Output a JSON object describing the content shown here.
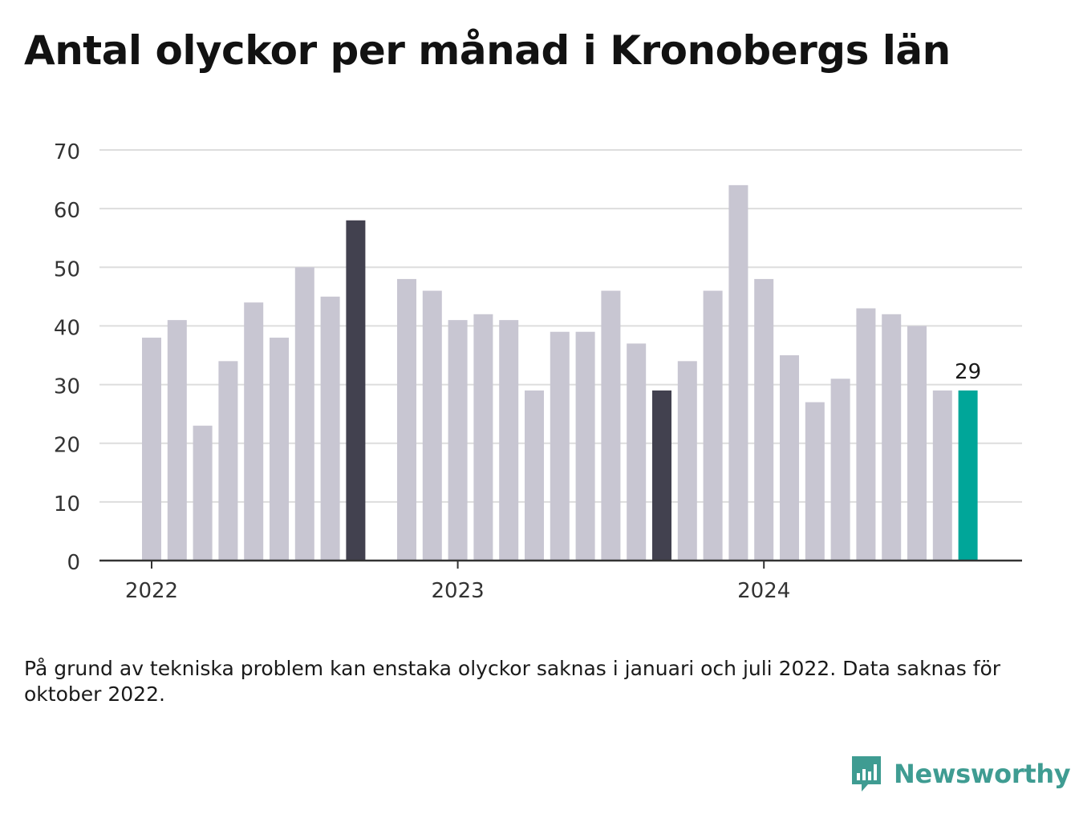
{
  "title": "Antal olyckor per månad i Kronobergs län",
  "note": "På grund av tekniska problem kan enstaka olyckor saknas i januari och juli 2022. Data saknas för oktober 2022.",
  "brand": {
    "name": "Newsworthy",
    "color": "#3f9c92",
    "icon": "newsworthy-chart-bubble-icon"
  },
  "colors": {
    "bar_default": "#c8c6d2",
    "bar_september": "#42414f",
    "bar_latest": "#00a699",
    "grid": "#dddddd",
    "axis": "#333333",
    "tick_text": "#333333"
  },
  "chart_data": {
    "type": "bar",
    "title": "Antal olyckor per månad i Kronobergs län",
    "xlabel": "",
    "ylabel": "",
    "ylim": [
      0,
      70
    ],
    "yticks": [
      0,
      10,
      20,
      30,
      40,
      50,
      60,
      70
    ],
    "xtick_labels": [
      {
        "label": "2022",
        "month": "2022-01"
      },
      {
        "label": "2023",
        "month": "2023-01"
      },
      {
        "label": "2024",
        "month": "2024-01"
      }
    ],
    "grid": true,
    "x": [
      "2022-01",
      "2022-02",
      "2022-03",
      "2022-04",
      "2022-05",
      "2022-06",
      "2022-07",
      "2022-08",
      "2022-09",
      "2022-10",
      "2022-11",
      "2022-12",
      "2023-01",
      "2023-02",
      "2023-03",
      "2023-04",
      "2023-05",
      "2023-06",
      "2023-07",
      "2023-08",
      "2023-09",
      "2023-10",
      "2023-11",
      "2023-12",
      "2024-01",
      "2024-02",
      "2024-03",
      "2024-04",
      "2024-05",
      "2024-06",
      "2024-07",
      "2024-08",
      "2024-09"
    ],
    "values": [
      38,
      41,
      23,
      34,
      44,
      38,
      50,
      45,
      58,
      null,
      48,
      46,
      41,
      42,
      41,
      29,
      39,
      39,
      46,
      37,
      29,
      34,
      46,
      64,
      48,
      35,
      27,
      31,
      43,
      42,
      40,
      29,
      29
    ],
    "highlight": {
      "2022-09": "bar_september",
      "2023-09": "bar_september",
      "2024-09": "bar_latest"
    },
    "data_labels": [
      {
        "month": "2024-09",
        "text": "29"
      }
    ]
  }
}
